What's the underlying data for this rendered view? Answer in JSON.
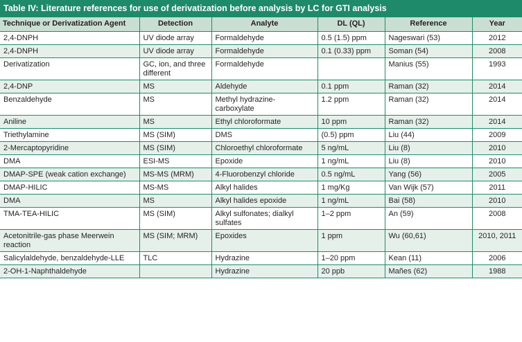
{
  "table_title": "Table IV: Literature references for use of derivatization before analysis by LC for GTI analysis",
  "columns": [
    "Technique or Derivatization Agent",
    "Detection",
    "Analyte",
    "DL (QL)",
    "Reference",
    "Year"
  ],
  "rows": [
    [
      "2,4-DNPH",
      "UV diode array",
      "Formaldehyde",
      "0.5 (1.5) ppm",
      "Nageswari (53)",
      "2012"
    ],
    [
      "2,4-DNPH",
      "UV diode array",
      "Formaldehyde",
      "0.1 (0.33) ppm",
      "Soman (54)",
      "2008"
    ],
    [
      "Derivatization",
      "GC, ion, and three different",
      "Formaldehyde",
      "",
      "Manius (55)",
      "1993"
    ],
    [
      "2,4-DNP",
      "MS",
      "Aldehyde",
      "0.1 ppm",
      "Raman (32)",
      "2014"
    ],
    [
      "Benzaldehyde",
      "MS",
      "Methyl hydrazine-carboxylate",
      "1.2 ppm",
      "Raman (32)",
      "2014"
    ],
    [
      "Aniline",
      "MS",
      "Ethyl chloroformate",
      "10 ppm",
      "Raman (32)",
      "2014"
    ],
    [
      "Triethylamine",
      "MS (SIM)",
      "DMS",
      "(0.5) ppm",
      "Liu (44)",
      "2009"
    ],
    [
      "2-Mercaptopyridine",
      "MS (SIM)",
      "Chloroethyl chloroformate",
      "5 ng/mL",
      "Liu (8)",
      "2010"
    ],
    [
      "DMA",
      "ESI-MS",
      "Epoxide",
      "1 ng/mL",
      "Liu (8)",
      "2010"
    ],
    [
      "DMAP-SPE (weak cation exchange)",
      "MS-MS (MRM)",
      "4-Fluorobenzyl chloride",
      "0.5 ng/mL",
      "Yang (56)",
      "2005"
    ],
    [
      "DMAP-HILIC",
      "MS-MS",
      "Alkyl halides",
      "1 mg/Kg",
      "Van Wijk (57)",
      "2011"
    ],
    [
      "DMA",
      "MS",
      "Alkyl halides epoxide",
      "1 ng/mL",
      "Bai (58)",
      "2010"
    ],
    [
      "TMA-TEA-HILIC",
      "MS (SIM)",
      "Alkyl sulfonates; dialkyl sulfates",
      "1–2 ppm",
      "An (59)",
      "2008"
    ],
    [
      "Acetonitrile-gas phase Meerwein reaction",
      "MS (SIM; MRM)",
      "Epoxides",
      "1 ppm",
      "Wu (60,61)",
      "2010, 2011"
    ],
    [
      "Salicylaldehyde, benzaldehyde-LLE",
      "TLC",
      "Hydrazine",
      "1–20 ppm",
      "Kean (11)",
      "2006"
    ],
    [
      "2-OH-1-Naphthaldehyde",
      "",
      "Hydrazine",
      "20 ppb",
      "Mañes (62)",
      "1988"
    ]
  ],
  "colors": {
    "title_bg": "#1e8a69",
    "header_bg": "#c9dfd4",
    "stripe_bg": "#e6f0eb",
    "border": "#1e8a69"
  }
}
